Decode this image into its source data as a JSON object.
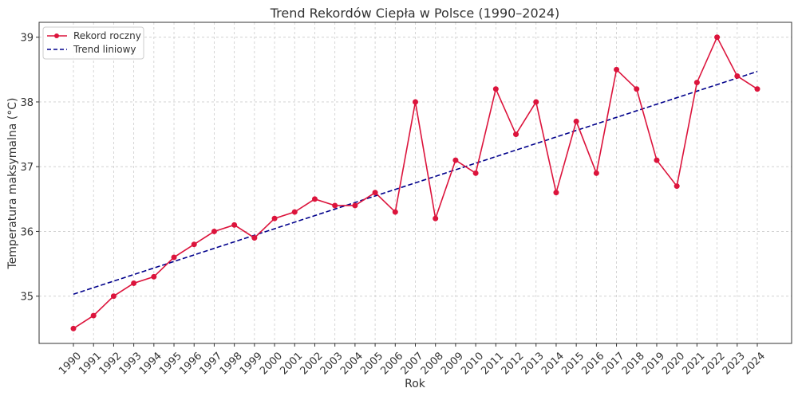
{
  "chart_data": {
    "type": "line",
    "title": "Trend Rekordów Ciepła w Polsce (1990–2024)",
    "xlabel": "Rok",
    "ylabel": "Temperatura maksymalna (°C)",
    "x": [
      1990,
      1991,
      1992,
      1993,
      1994,
      1995,
      1996,
      1997,
      1998,
      1999,
      2000,
      2001,
      2002,
      2003,
      2004,
      2005,
      2006,
      2007,
      2008,
      2009,
      2010,
      2011,
      2012,
      2013,
      2014,
      2015,
      2016,
      2017,
      2018,
      2019,
      2020,
      2021,
      2022,
      2023,
      2024
    ],
    "series": [
      {
        "name": "Rekord roczny",
        "color": "#dc143c",
        "values": [
          34.5,
          34.7,
          35.0,
          35.2,
          35.3,
          35.6,
          35.8,
          36.0,
          36.1,
          35.9,
          36.2,
          36.3,
          36.5,
          36.4,
          36.4,
          36.6,
          36.3,
          38.0,
          36.2,
          37.1,
          36.9,
          38.2,
          37.5,
          38.0,
          36.6,
          37.7,
          36.9,
          38.5,
          38.2,
          37.1,
          36.7,
          38.3,
          39.0,
          38.4,
          38.2
        ]
      },
      {
        "name": "Trend liniowy",
        "color": "#00008b",
        "style": "dashed",
        "start": 35.03,
        "end": 38.47
      }
    ],
    "yticks": [
      35,
      36,
      37,
      38,
      39
    ],
    "ylim": [
      34.27,
      39.23
    ],
    "grid": true,
    "legend": "top-left"
  }
}
